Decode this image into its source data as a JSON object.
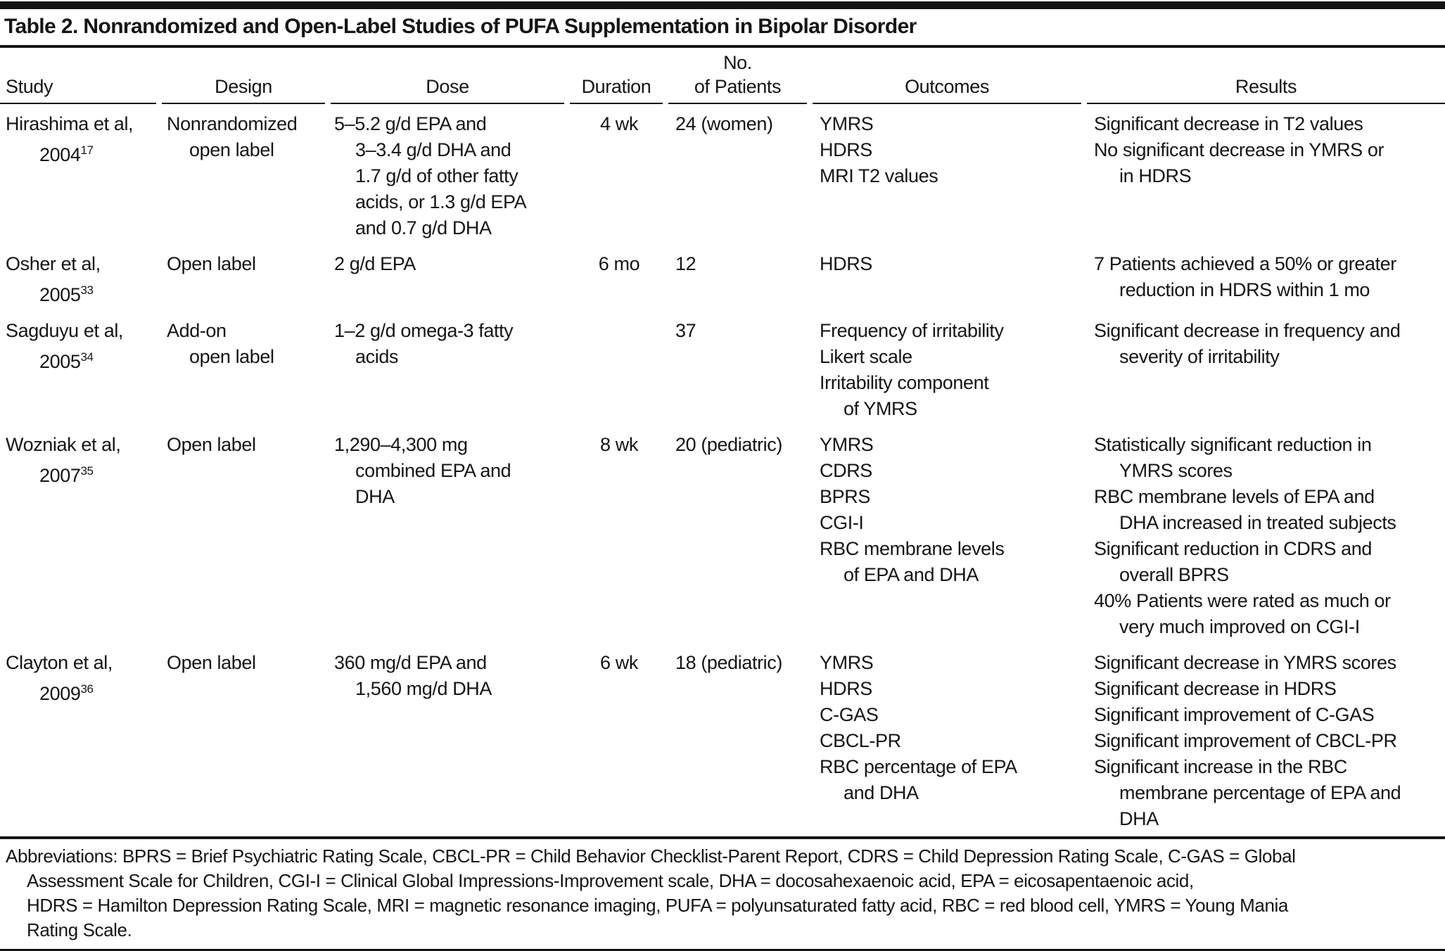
{
  "table": {
    "title": "Table 2. Nonrandomized and Open-Label Studies of PUFA Supplementation in Bipolar Disorder",
    "columns": [
      "Study",
      "Design",
      "Dose",
      "Duration",
      "No.\nof Patients",
      "Outcomes",
      "Results"
    ],
    "rows": [
      {
        "study": "Hirashima et al,\n2004",
        "ref": "17",
        "design": "Nonrandomized\nopen label",
        "dose": "5–5.2 g/d EPA and\n3–3.4 g/d DHA and\n1.7 g/d of other fatty\nacids, or 1.3 g/d EPA\nand 0.7 g/d DHA",
        "duration": "4 wk",
        "patients": "24 (women)",
        "outcomes": [
          "YMRS",
          "HDRS",
          "MRI T2 values"
        ],
        "results": [
          "Significant decrease in T2 values",
          "No significant decrease in YMRS or\nin HDRS"
        ]
      },
      {
        "study": "Osher et al,\n2005",
        "ref": "33",
        "design": "Open label",
        "dose": "2 g/d EPA",
        "duration": "6 mo",
        "patients": "12",
        "outcomes": [
          "HDRS"
        ],
        "results": [
          "7 Patients achieved a 50% or greater\nreduction in HDRS within 1 mo"
        ]
      },
      {
        "study": "Sagduyu et al,\n2005",
        "ref": "34",
        "design": "Add-on\nopen label",
        "dose": "1–2 g/d omega-3 fatty\nacids",
        "duration": "",
        "patients": "37",
        "outcomes": [
          "Frequency of irritability",
          "Likert scale",
          "Irritability component\nof YMRS"
        ],
        "results": [
          "Significant decrease in frequency and\nseverity of irritability"
        ]
      },
      {
        "study": "Wozniak et al,\n2007",
        "ref": "35",
        "design": "Open label",
        "dose": "1,290–4,300 mg\ncombined EPA and\nDHA",
        "duration": "8 wk",
        "patients": "20 (pediatric)",
        "outcomes": [
          "YMRS",
          "CDRS",
          "BPRS",
          "CGI-I",
          "RBC membrane levels\nof EPA and DHA"
        ],
        "results": [
          "Statistically significant reduction in\nYMRS scores",
          "RBC membrane levels of EPA and\nDHA increased in treated subjects",
          "Significant reduction in CDRS and\noverall BPRS",
          "40% Patients were rated as much or\nvery much improved on CGI-I"
        ]
      },
      {
        "study": "Clayton et al,\n2009",
        "ref": "36",
        "design": "Open label",
        "dose": "360 mg/d EPA and\n1,560 mg/d DHA",
        "duration": "6 wk",
        "patients": "18 (pediatric)",
        "outcomes": [
          "YMRS",
          "HDRS",
          "C-GAS",
          "CBCL-PR",
          "RBC percentage of EPA\nand DHA"
        ],
        "results": [
          "Significant decrease in YMRS scores",
          "Significant decrease in HDRS",
          "Significant improvement of C-GAS",
          "Significant improvement of CBCL-PR",
          "Significant increase in the RBC\nmembrane percentage of EPA and\nDHA"
        ]
      }
    ],
    "footnote": "Abbreviations: BPRS = Brief Psychiatric Rating Scale, CBCL-PR = Child Behavior Checklist-Parent Report, CDRS = Child Depression Rating Scale, C-GAS = Global\nAssessment Scale for Children, CGI-I = Clinical Global Impressions-Improvement scale, DHA = docosahexaenoic acid, EPA = eicosapentaenoic acid,\nHDRS = Hamilton Depression Rating Scale, MRI = magnetic resonance imaging, PUFA = polyunsaturated fatty acid, RBC = red blood cell, YMRS = Young Mania\nRating Scale."
  }
}
